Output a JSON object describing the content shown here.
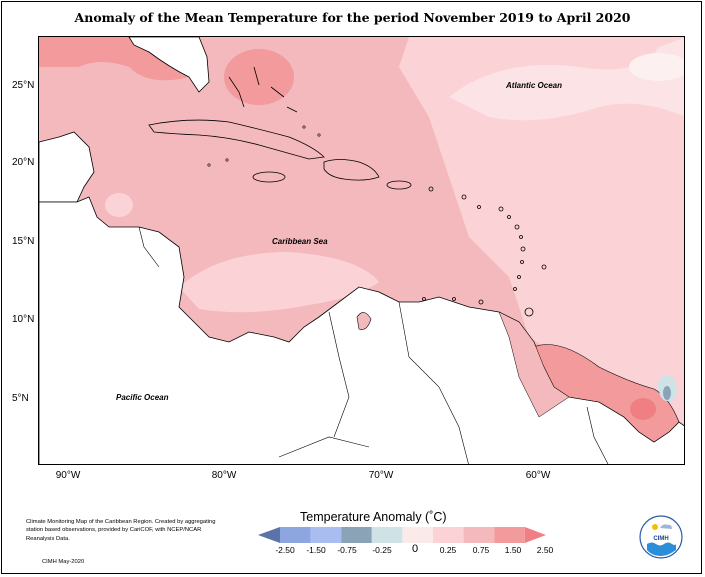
{
  "title": "Anomaly of the Mean Temperature for the period November 2019 to April 2020",
  "axes": {
    "lat_labels": [
      "25°N",
      "20°N",
      "15°N",
      "10°N",
      "5°N"
    ],
    "lon_labels": [
      "90°W",
      "80°W",
      "70°W",
      "60°W"
    ]
  },
  "map_labels": {
    "atlantic": "Atlantic Ocean",
    "caribbean": "Caribbean Sea",
    "pacific": "Pacific Ocean"
  },
  "legend": {
    "title": "Temperature Anomaly (˚C)",
    "ticks": [
      "-2.50",
      "-1.50",
      "-0.75",
      "-0.25",
      "0",
      "0.25",
      "0.75",
      "1.50",
      "2.50"
    ],
    "colors": [
      "#5a73a8",
      "#8ea6e0",
      "#a9bdf0",
      "#8aa3b7",
      "#cfe3e7",
      "#fbeaea",
      "#fbd3d6",
      "#f4b9bc",
      "#f29a9c",
      "#f07f83"
    ]
  },
  "credit": {
    "text": "Climate Monitoring Map of the Caribbean Region. Created by aggregating station based observations, provided by CariCOF, with NCEP/NCAR Reanalysis Data.",
    "date": "CIMH May-2020"
  },
  "logo": {
    "text": "CIMH",
    "icon": "cimh-logo-icon"
  }
}
